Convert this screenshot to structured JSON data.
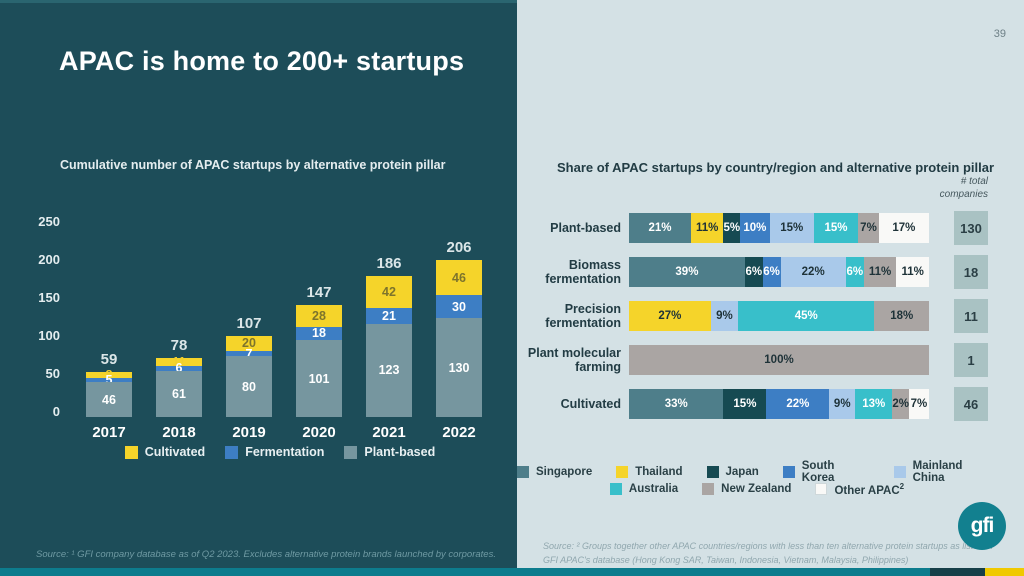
{
  "page": {
    "title": "APAC is home to 200+ startups",
    "number": "39",
    "logo_text": "gfi",
    "accent_colors": {
      "strip_teal": "#0d7c8d",
      "strip_dark": "#163f48",
      "strip_yellow": "#f0c900",
      "left_bg": "#1d4d59",
      "right_bg": "#d4e1e5"
    }
  },
  "chart_data": [
    {
      "type": "bar",
      "subtype": "stacked-vertical",
      "title": "Cumulative number of APAC startups by alternative protein pillar",
      "categories": [
        "2017",
        "2018",
        "2019",
        "2020",
        "2021",
        "2022"
      ],
      "totals": [
        59,
        78,
        107,
        147,
        186,
        206
      ],
      "ylim": [
        0,
        250
      ],
      "yticks": [
        0,
        50,
        100,
        150,
        200,
        250
      ],
      "grid": "off",
      "legend_position": "bottom",
      "series": [
        {
          "name": "Plant-based",
          "color": "#76969f",
          "values": [
            46,
            61,
            80,
            101,
            123,
            130
          ]
        },
        {
          "name": "Fermentation",
          "color": "#3d7ec4",
          "values": [
            5,
            6,
            7,
            18,
            21,
            30
          ]
        },
        {
          "name": "Cultivated",
          "color": "#f5d42a",
          "values": [
            8,
            11,
            20,
            28,
            42,
            46
          ]
        }
      ],
      "legend": [
        {
          "label": "Cultivated",
          "color": "#f5d42a"
        },
        {
          "label": "Fermentation",
          "color": "#3d7ec4"
        },
        {
          "label": "Plant-based",
          "color": "#76969f"
        }
      ],
      "source": "Source: ¹ GFI company database as of Q2 2023. Excludes alternative protein brands launched by corporates."
    },
    {
      "type": "bar",
      "subtype": "stacked-horizontal-percent",
      "title": "Share of APAC startups by country/region and alternative protein pillar",
      "total_header": "# total\ncompanies",
      "grid": "off",
      "legend_position": "bottom",
      "countries": [
        {
          "name": "Singapore",
          "color": "#4e7e8a",
          "text": "#ffffff"
        },
        {
          "name": "Thailand",
          "color": "#f5d42a",
          "text": "#1e3238"
        },
        {
          "name": "Japan",
          "color": "#164a52",
          "text": "#ffffff"
        },
        {
          "name": "South Korea",
          "color": "#3d7ec4",
          "text": "#ffffff"
        },
        {
          "name": "Mainland China",
          "color": "#a9c9ea",
          "text": "#1e3238"
        },
        {
          "name": "Australia",
          "color": "#38bfca",
          "text": "#ffffff"
        },
        {
          "name": "New Zealand",
          "color": "#aaa5a3",
          "text": "#1e3238"
        },
        {
          "name": "Other APAC",
          "sup": "2",
          "color": "#f9f9f7",
          "text": "#1e3238"
        }
      ],
      "rows": [
        {
          "label": "Plant-based",
          "total": 130,
          "segments": [
            {
              "country": "Singapore",
              "pct": 21
            },
            {
              "country": "Thailand",
              "pct": 11
            },
            {
              "country": "Japan",
              "pct": 5
            },
            {
              "country": "South Korea",
              "pct": 10
            },
            {
              "country": "Mainland China",
              "pct": 15
            },
            {
              "country": "Australia",
              "pct": 15
            },
            {
              "country": "New Zealand",
              "pct": 7
            },
            {
              "country": "Other APAC",
              "pct": 17
            }
          ]
        },
        {
          "label": "Biomass\nfermentation",
          "total": 18,
          "segments": [
            {
              "country": "Singapore",
              "pct": 39
            },
            {
              "country": "Japan",
              "pct": 6
            },
            {
              "country": "South Korea",
              "pct": 6
            },
            {
              "country": "Mainland China",
              "pct": 22
            },
            {
              "country": "Australia",
              "pct": 6
            },
            {
              "country": "New Zealand",
              "pct": 11
            },
            {
              "country": "Other APAC",
              "pct": 11
            }
          ]
        },
        {
          "label": "Precision\nfermentation",
          "total": 11,
          "segments": [
            {
              "country": "Thailand",
              "pct": 27
            },
            {
              "country": "Mainland China",
              "pct": 9
            },
            {
              "country": "Australia",
              "pct": 45
            },
            {
              "country": "New Zealand",
              "pct": 18
            }
          ]
        },
        {
          "label": "Plant molecular\nfarming",
          "total": 1,
          "segments": [
            {
              "country": "New Zealand",
              "pct": 100
            }
          ]
        },
        {
          "label": "Cultivated",
          "total": 46,
          "segments": [
            {
              "country": "Singapore",
              "pct": 33
            },
            {
              "country": "Japan",
              "pct": 15
            },
            {
              "country": "South Korea",
              "pct": 22
            },
            {
              "country": "Mainland China",
              "pct": 9
            },
            {
              "country": "Australia",
              "pct": 13
            },
            {
              "country": "New Zealand",
              "pct": 2
            },
            {
              "country": "Other APAC",
              "pct": 7
            }
          ]
        }
      ],
      "source": "Source: ² Groups together other APAC countries/regions with less than ten alternative protein startups as listed in GFI APAC's database (Hong Kong SAR, Taiwan, Indonesia, Vietnam, Malaysia, Philippines)"
    }
  ]
}
